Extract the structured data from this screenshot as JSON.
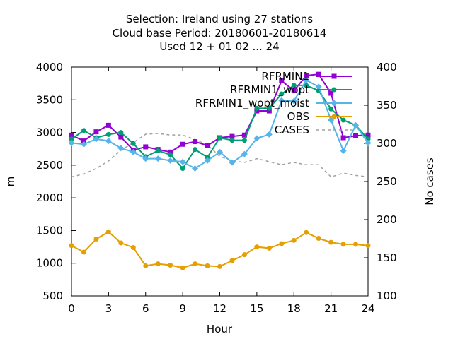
{
  "chart_data": {
    "type": "line",
    "title_lines": [
      "Selection: Ireland using    27 stations",
      "Cloud base   Period: 20180601-20180614",
      "Used  12 + 01 02 ... 24"
    ],
    "xlabel": "Hour",
    "ylabel": "m",
    "y2label": "No cases",
    "xlim": [
      0,
      24
    ],
    "ylim": [
      500,
      4000
    ],
    "y2lim": [
      100,
      400
    ],
    "xticks": [
      0,
      3,
      6,
      9,
      12,
      15,
      18,
      21,
      24
    ],
    "yticks": [
      500,
      1000,
      1500,
      2000,
      2500,
      3000,
      3500,
      4000
    ],
    "y2ticks": [
      100,
      150,
      200,
      250,
      300,
      350,
      400
    ],
    "grid": false,
    "legend_position": "top-right",
    "x": [
      0,
      1,
      2,
      3,
      4,
      5,
      6,
      7,
      8,
      9,
      10,
      11,
      12,
      13,
      14,
      15,
      16,
      17,
      18,
      19,
      20,
      21,
      22,
      23,
      24
    ],
    "series": [
      {
        "name": "RFRMIN1",
        "color": "#9400d3",
        "marker": "square",
        "axis": "left",
        "values": [
          2960,
          2870,
          3010,
          3110,
          2930,
          2730,
          2780,
          2740,
          2700,
          2820,
          2860,
          2800,
          2920,
          2940,
          2960,
          3330,
          3330,
          3790,
          3640,
          3870,
          3890,
          3600,
          2920,
          2950,
          2960
        ]
      },
      {
        "name": "RFRMIN1_wopt",
        "color": "#009e73",
        "marker": "circle",
        "axis": "left",
        "values": [
          2900,
          3030,
          2920,
          2970,
          3000,
          2830,
          2630,
          2720,
          2660,
          2450,
          2740,
          2620,
          2920,
          2880,
          2880,
          3370,
          3370,
          3590,
          3720,
          3720,
          3640,
          3360,
          3190,
          3110,
          2900
        ]
      },
      {
        "name": "RFRMIN1_wopt_moist",
        "color": "#56b4e9",
        "marker": "diamond",
        "axis": "left",
        "values": [
          2840,
          2820,
          2900,
          2870,
          2760,
          2700,
          2600,
          2600,
          2570,
          2550,
          2450,
          2570,
          2700,
          2540,
          2670,
          2910,
          2970,
          3490,
          3480,
          3800,
          3700,
          3190,
          2720,
          3110,
          2840
        ]
      },
      {
        "name": "OBS",
        "color": "#e69f00",
        "marker": "circle",
        "axis": "left",
        "values": [
          1270,
          1170,
          1370,
          1480,
          1310,
          1240,
          960,
          990,
          970,
          930,
          990,
          960,
          950,
          1040,
          1130,
          1250,
          1230,
          1300,
          1350,
          1470,
          1380,
          1320,
          1290,
          1290,
          1270
        ]
      },
      {
        "name": "CASES",
        "color": "#a0a0a0",
        "dashed": true,
        "axis": "right",
        "values": [
          256,
          260,
          267,
          277,
          291,
          301,
          312,
          313,
          311,
          311,
          305,
          298,
          283,
          277,
          275,
          280,
          276,
          272,
          275,
          272,
          272,
          256,
          261,
          258,
          256
        ]
      }
    ]
  }
}
